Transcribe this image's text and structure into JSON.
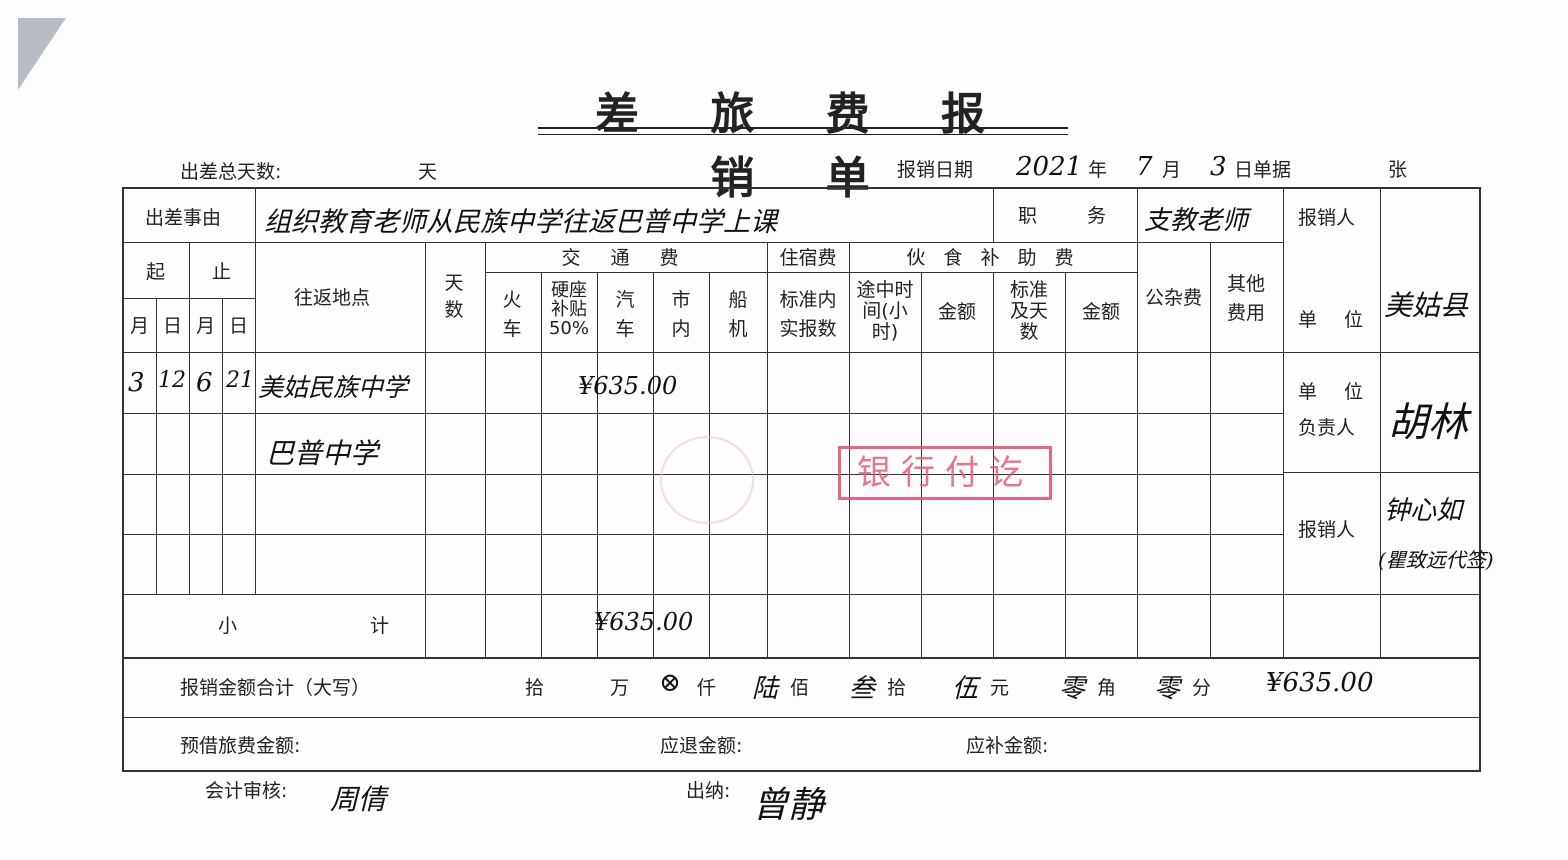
{
  "title": "差 旅 费 报 销 单",
  "header": {
    "total_days_label": "出差总天数:",
    "days_unit": "天",
    "date_label": "报销日期",
    "year": "2021",
    "year_label": "年",
    "month": "7",
    "month_label": "月",
    "day": "3",
    "day_receipt_label": "日单据",
    "sheets_unit": "张"
  },
  "reason": {
    "label": "出差事由",
    "value": "组织教育老师从民族中学往返巴普中学上课",
    "position_label": "职　　务",
    "position_value": "支教老师"
  },
  "columns": {
    "start": "起",
    "end": "止",
    "month": "月",
    "day": "日",
    "route": "往返地点",
    "days": "天数",
    "transport": "交 通 费",
    "train": "火车",
    "hard_seat": "硬座补贴50%",
    "bus": "汽车",
    "city": "市内",
    "ship_plane": "船机",
    "lodging": "住宿费",
    "lodging_actual": "标准内实报数",
    "meal": "伙 食 补 助 费",
    "travel_hours": "途中时间(小时)",
    "amount1": "金额",
    "standard_days": "标准及天数",
    "amount2": "金额",
    "misc": "公杂费",
    "other": "其他费用"
  },
  "rows": [
    {
      "start_month": "3",
      "start_day": "12",
      "end_month": "6",
      "end_day": "21",
      "route": "美姑民族中学",
      "transport": "¥635.00"
    },
    {
      "route": "巴普中学"
    }
  ],
  "subtotal": {
    "label_a": "小",
    "label_b": "计",
    "transport": "¥635.00"
  },
  "total_words": {
    "label": "报销金额合计（大写）",
    "units": [
      "拾",
      "万",
      "仟",
      "佰",
      "拾",
      "元",
      "角",
      "分"
    ],
    "digits": [
      "",
      "",
      "⊗",
      "陆",
      "叁",
      "伍",
      "零",
      "零"
    ],
    "amount": "¥635.00"
  },
  "footer": {
    "advance_label": "预借旅费金额:",
    "refund_label": "应退金额:",
    "supplement_label": "应补金额:"
  },
  "sign": {
    "claimant_label": "报销人",
    "unit_label": "单　位",
    "unit_value": "美姑县",
    "head_label_1": "单　位",
    "head_label_2": "负责人",
    "head_sign": "胡林",
    "claimant2_label": "报销人",
    "claimant_sign": "钟心如",
    "claimant_sign_2": "(瞿致远代签)",
    "accountant_label": "会计审核:",
    "accountant_sign": "周倩",
    "cashier_label": "出纳:",
    "cashier_sign": "曾静"
  },
  "stamp": "银行付讫"
}
